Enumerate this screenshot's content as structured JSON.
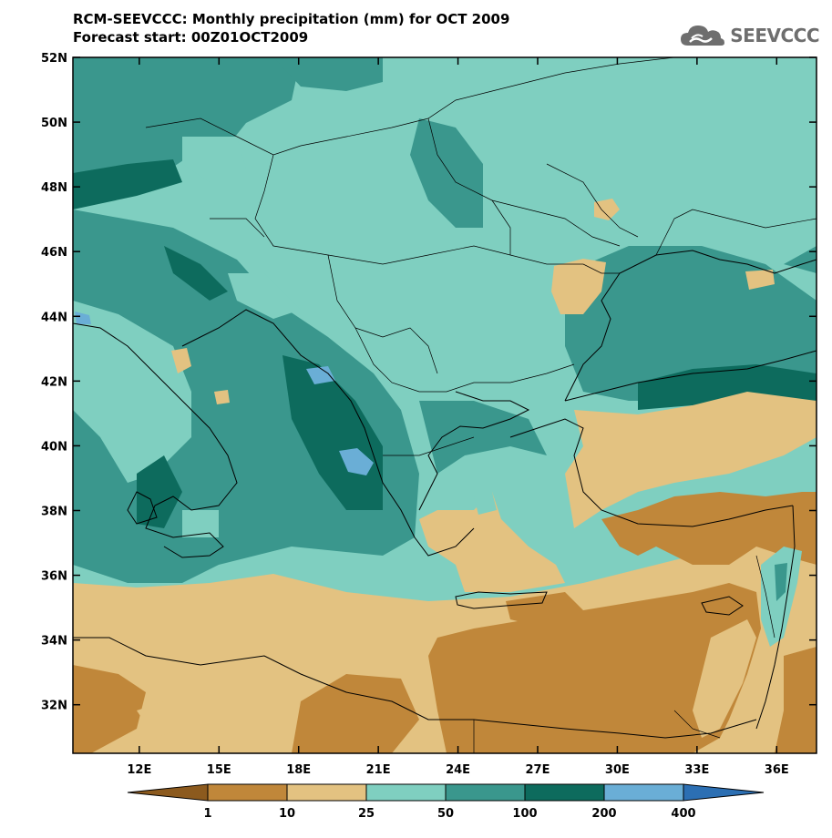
{
  "title": "RCM-SEEVCCC: Monthly precipitation (mm) for OCT 2009",
  "subtitle": "Forecast start: 00Z01OCT2009",
  "logo": {
    "text": "SEEVCCC",
    "icon": "cloud-logo-icon",
    "color": "#6e6e6e"
  },
  "map": {
    "lon_range": [
      9.5,
      37.5
    ],
    "lat_range": [
      30.5,
      52
    ],
    "lat_ticks": [
      "52N",
      "50N",
      "48N",
      "46N",
      "44N",
      "42N",
      "40N",
      "38N",
      "36N",
      "34N",
      "32N"
    ],
    "lon_ticks": [
      "12E",
      "15E",
      "18E",
      "21E",
      "24E",
      "27E",
      "30E",
      "33E",
      "36E"
    ]
  },
  "colorbar": {
    "labels": [
      "1",
      "10",
      "25",
      "50",
      "100",
      "200",
      "400"
    ],
    "colors": [
      "#8c5a1e",
      "#c0873a",
      "#e3c281",
      "#7fcfc0",
      "#3a978d",
      "#0d6b5d",
      "#6aaed6",
      "#2c6fb3"
    ],
    "units": "mm"
  }
}
